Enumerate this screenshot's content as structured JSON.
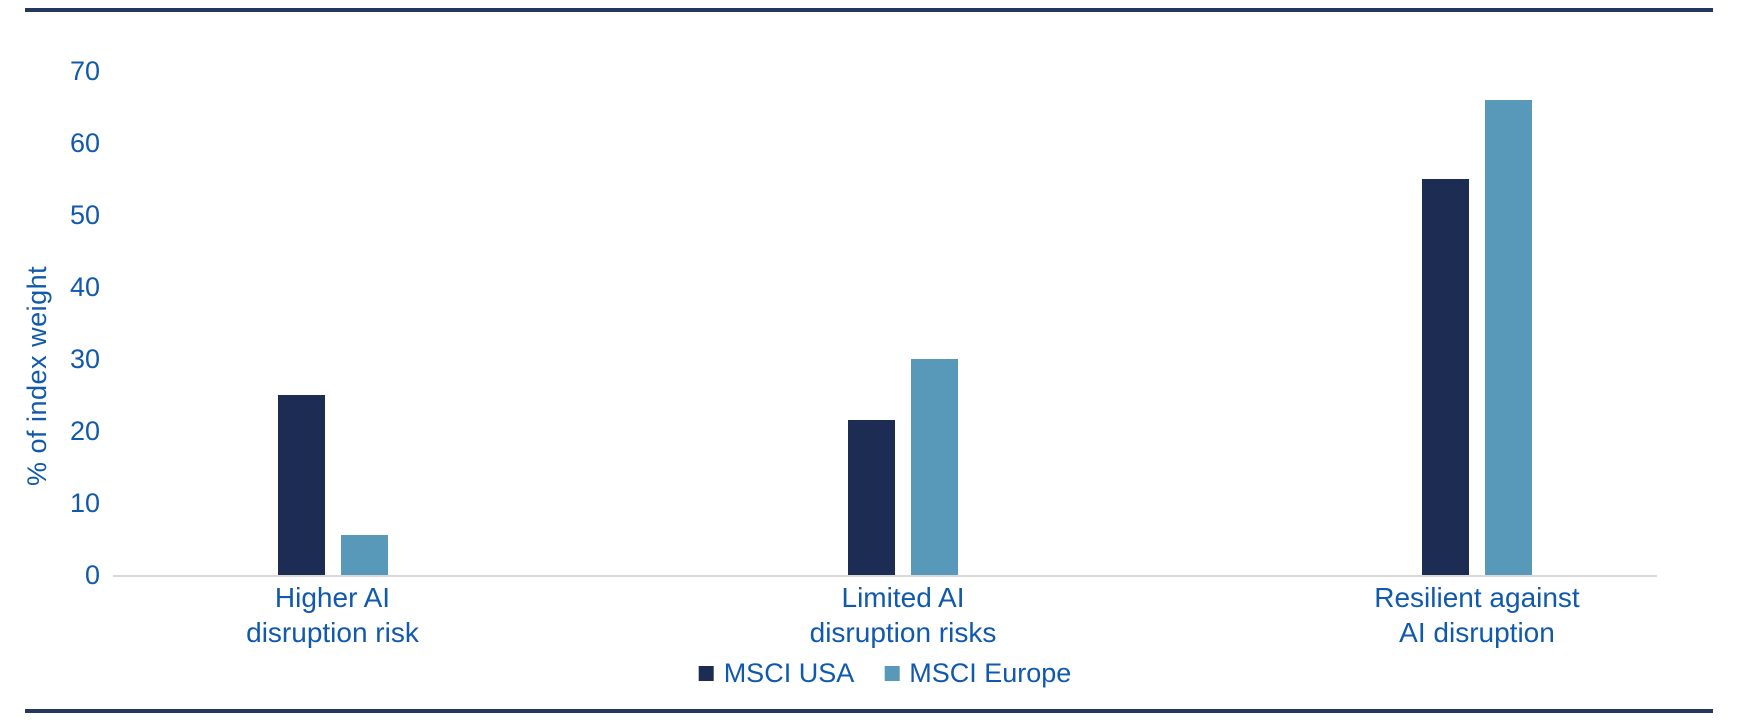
{
  "chart_data": {
    "type": "bar",
    "categories": [
      [
        "Higher AI",
        "disruption risk"
      ],
      [
        "Limited AI",
        "disruption risks"
      ],
      [
        "Resilient against",
        "AI disruption"
      ]
    ],
    "series": [
      {
        "name": "MSCI USA",
        "color": "#1c2c52",
        "values": [
          25,
          21.5,
          55
        ]
      },
      {
        "name": "MSCI Europe",
        "color": "#5898b9",
        "values": [
          5.5,
          30,
          66
        ]
      }
    ],
    "title": "",
    "xlabel": "",
    "ylabel": "% of index weight",
    "yticks": [
      0,
      10,
      20,
      30,
      40,
      50,
      60,
      70
    ],
    "ylim": [
      0,
      70
    ],
    "grid": false,
    "legend_position": "bottom"
  },
  "colors": {
    "text_blue": "#1059ac",
    "rule_navy": "#24375f",
    "axis_gray": "#d9d9d9",
    "background": "#ffffff"
  }
}
